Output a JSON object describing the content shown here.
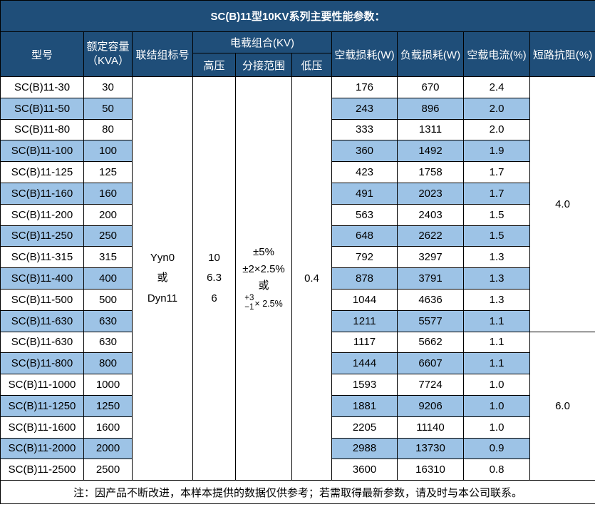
{
  "title": "SC(B)11型10KV系列主要性能参数：",
  "header": {
    "model": "型号",
    "capacity_line1": "额定容量",
    "capacity_line2": "（KVA）",
    "connection": "联结组标号",
    "load_combo": "电载组合(KV)",
    "hv": "高压",
    "tap_range": "分接范围",
    "lv": "低压",
    "no_load_loss": "空载损耗(W)",
    "load_loss": "负载损耗(W)",
    "no_load_current": "空载电流(%)",
    "impedance": "短路抗阻(%)"
  },
  "merged": {
    "connection_lines": [
      "Yyn0",
      "或",
      "Dyn11"
    ],
    "hv_lines": [
      "10",
      "6.3",
      "6"
    ],
    "tap_lines": [
      "±5%",
      "±2×2.5%",
      "或"
    ],
    "tap_stack": {
      "top": "+3",
      "bottom": "−1",
      "suffix": "× 2.5%"
    },
    "lv": "0.4",
    "impedance_groups": [
      {
        "value": "4.0",
        "rows": 12
      },
      {
        "value": "6.0",
        "rows": 7
      }
    ]
  },
  "rows": [
    {
      "model": "SC(B)11-30",
      "capacity": "30",
      "no_load_loss": "176",
      "load_loss": "670",
      "no_load_current": "2.4"
    },
    {
      "model": "SC(B)11-50",
      "capacity": "50",
      "no_load_loss": "243",
      "load_loss": "896",
      "no_load_current": "2.0"
    },
    {
      "model": "SC(B)11-80",
      "capacity": "80",
      "no_load_loss": "333",
      "load_loss": "1311",
      "no_load_current": "2.0"
    },
    {
      "model": "SC(B)11-100",
      "capacity": "100",
      "no_load_loss": "360",
      "load_loss": "1492",
      "no_load_current": "1.9"
    },
    {
      "model": "SC(B)11-125",
      "capacity": "125",
      "no_load_loss": "423",
      "load_loss": "1758",
      "no_load_current": "1.7"
    },
    {
      "model": "SC(B)11-160",
      "capacity": "160",
      "no_load_loss": "491",
      "load_loss": "2023",
      "no_load_current": "1.7"
    },
    {
      "model": "SC(B)11-200",
      "capacity": "200",
      "no_load_loss": "563",
      "load_loss": "2403",
      "no_load_current": "1.5"
    },
    {
      "model": "SC(B)11-250",
      "capacity": "250",
      "no_load_loss": "648",
      "load_loss": "2622",
      "no_load_current": "1.5"
    },
    {
      "model": "SC(B)11-315",
      "capacity": "315",
      "no_load_loss": "792",
      "load_loss": "3297",
      "no_load_current": "1.3"
    },
    {
      "model": "SC(B)11-400",
      "capacity": "400",
      "no_load_loss": "878",
      "load_loss": "3791",
      "no_load_current": "1.3"
    },
    {
      "model": "SC(B)11-500",
      "capacity": "500",
      "no_load_loss": "1044",
      "load_loss": "4636",
      "no_load_current": "1.3"
    },
    {
      "model": "SC(B)11-630",
      "capacity": "630",
      "no_load_loss": "1211",
      "load_loss": "5577",
      "no_load_current": "1.1"
    },
    {
      "model": "SC(B)11-630",
      "capacity": "630",
      "no_load_loss": "1117",
      "load_loss": "5662",
      "no_load_current": "1.1"
    },
    {
      "model": "SC(B)11-800",
      "capacity": "800",
      "no_load_loss": "1444",
      "load_loss": "6607",
      "no_load_current": "1.1"
    },
    {
      "model": "SC(B)11-1000",
      "capacity": "1000",
      "no_load_loss": "1593",
      "load_loss": "7724",
      "no_load_current": "1.0"
    },
    {
      "model": "SC(B)11-1250",
      "capacity": "1250",
      "no_load_loss": "1881",
      "load_loss": "9206",
      "no_load_current": "1.0"
    },
    {
      "model": "SC(B)11-1600",
      "capacity": "1600",
      "no_load_loss": "2205",
      "load_loss": "11140",
      "no_load_current": "1.0"
    },
    {
      "model": "SC(B)11-2000",
      "capacity": "2000",
      "no_load_loss": "2988",
      "load_loss": "13730",
      "no_load_current": "0.9"
    },
    {
      "model": "SC(B)11-2500",
      "capacity": "2500",
      "no_load_loss": "3600",
      "load_loss": "16310",
      "no_load_current": "0.8"
    }
  ],
  "footer": "注：因产品不断改进，本样本提供的数据仅供参考；若需取得最新参数，请及时与本公司联系。",
  "colors": {
    "header_bg": "#1F4E79",
    "stripe_bg": "#9DC3E6",
    "border": "#000000",
    "header_text": "#FFFFFF",
    "body_text": "#000000"
  }
}
